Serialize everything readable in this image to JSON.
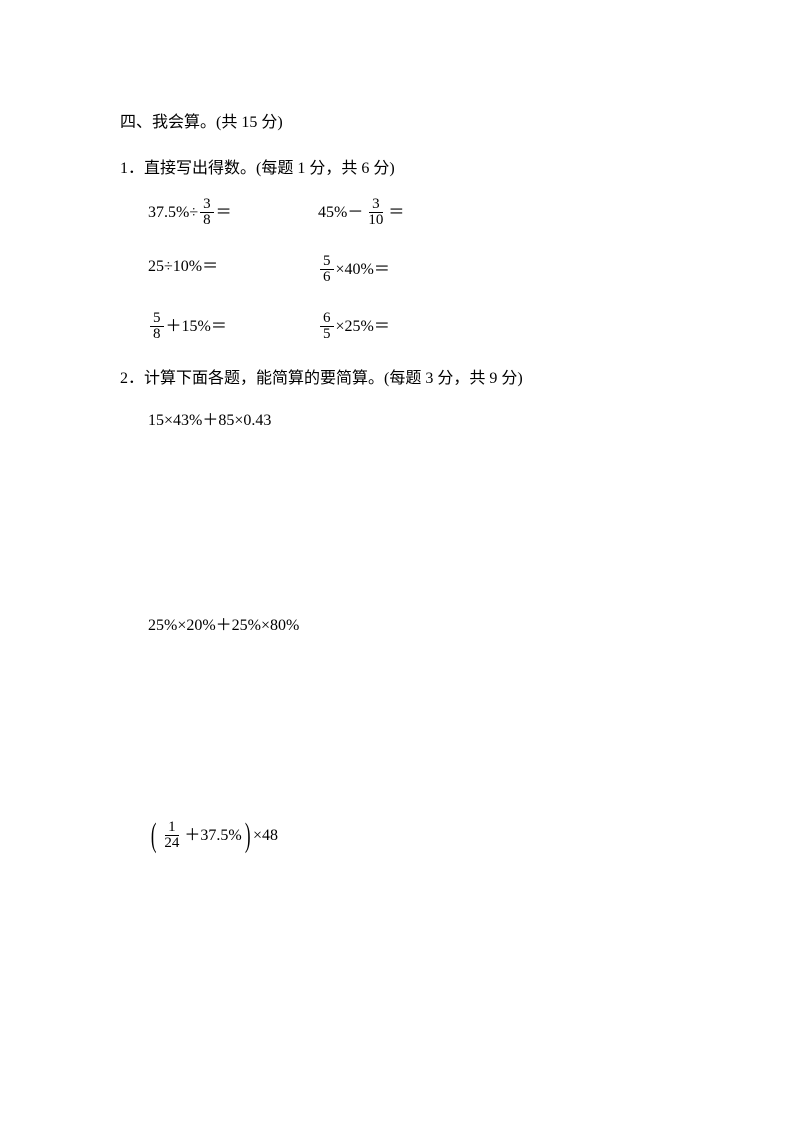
{
  "section4": {
    "title": "四、我会算。(共 15 分)",
    "sub1": {
      "title": "1．直接写出得数。(每题 1 分，共 6 分)",
      "p1a": "37.5%÷",
      "p1_frac_num": "3",
      "p1_frac_den": "8",
      "p1b": "＝",
      "p2a": "45%－",
      "p2_frac_num": "3",
      "p2_frac_den": "10",
      "p2b": "＝",
      "p3": "25÷10%＝",
      "p4_frac_num": "5",
      "p4_frac_den": "6",
      "p4b": "×40%＝",
      "p5_frac_num": "5",
      "p5_frac_den": "8",
      "p5b": "＋15%＝",
      "p6_frac_num": "6",
      "p6_frac_den": "5",
      "p6b": "×25%＝"
    },
    "sub2": {
      "title": "2．计算下面各题，能简算的要简算。(每题 3 分，共 9 分)",
      "c1": "15×43%＋85×0.43",
      "c2": "25%×20%＋25%×80%",
      "c3_lb": "(",
      "c3_frac_num": "1",
      "c3_frac_den": "24",
      "c3_mid": "＋37.5%",
      "c3_rb": ")",
      "c3_end": "×48"
    }
  }
}
